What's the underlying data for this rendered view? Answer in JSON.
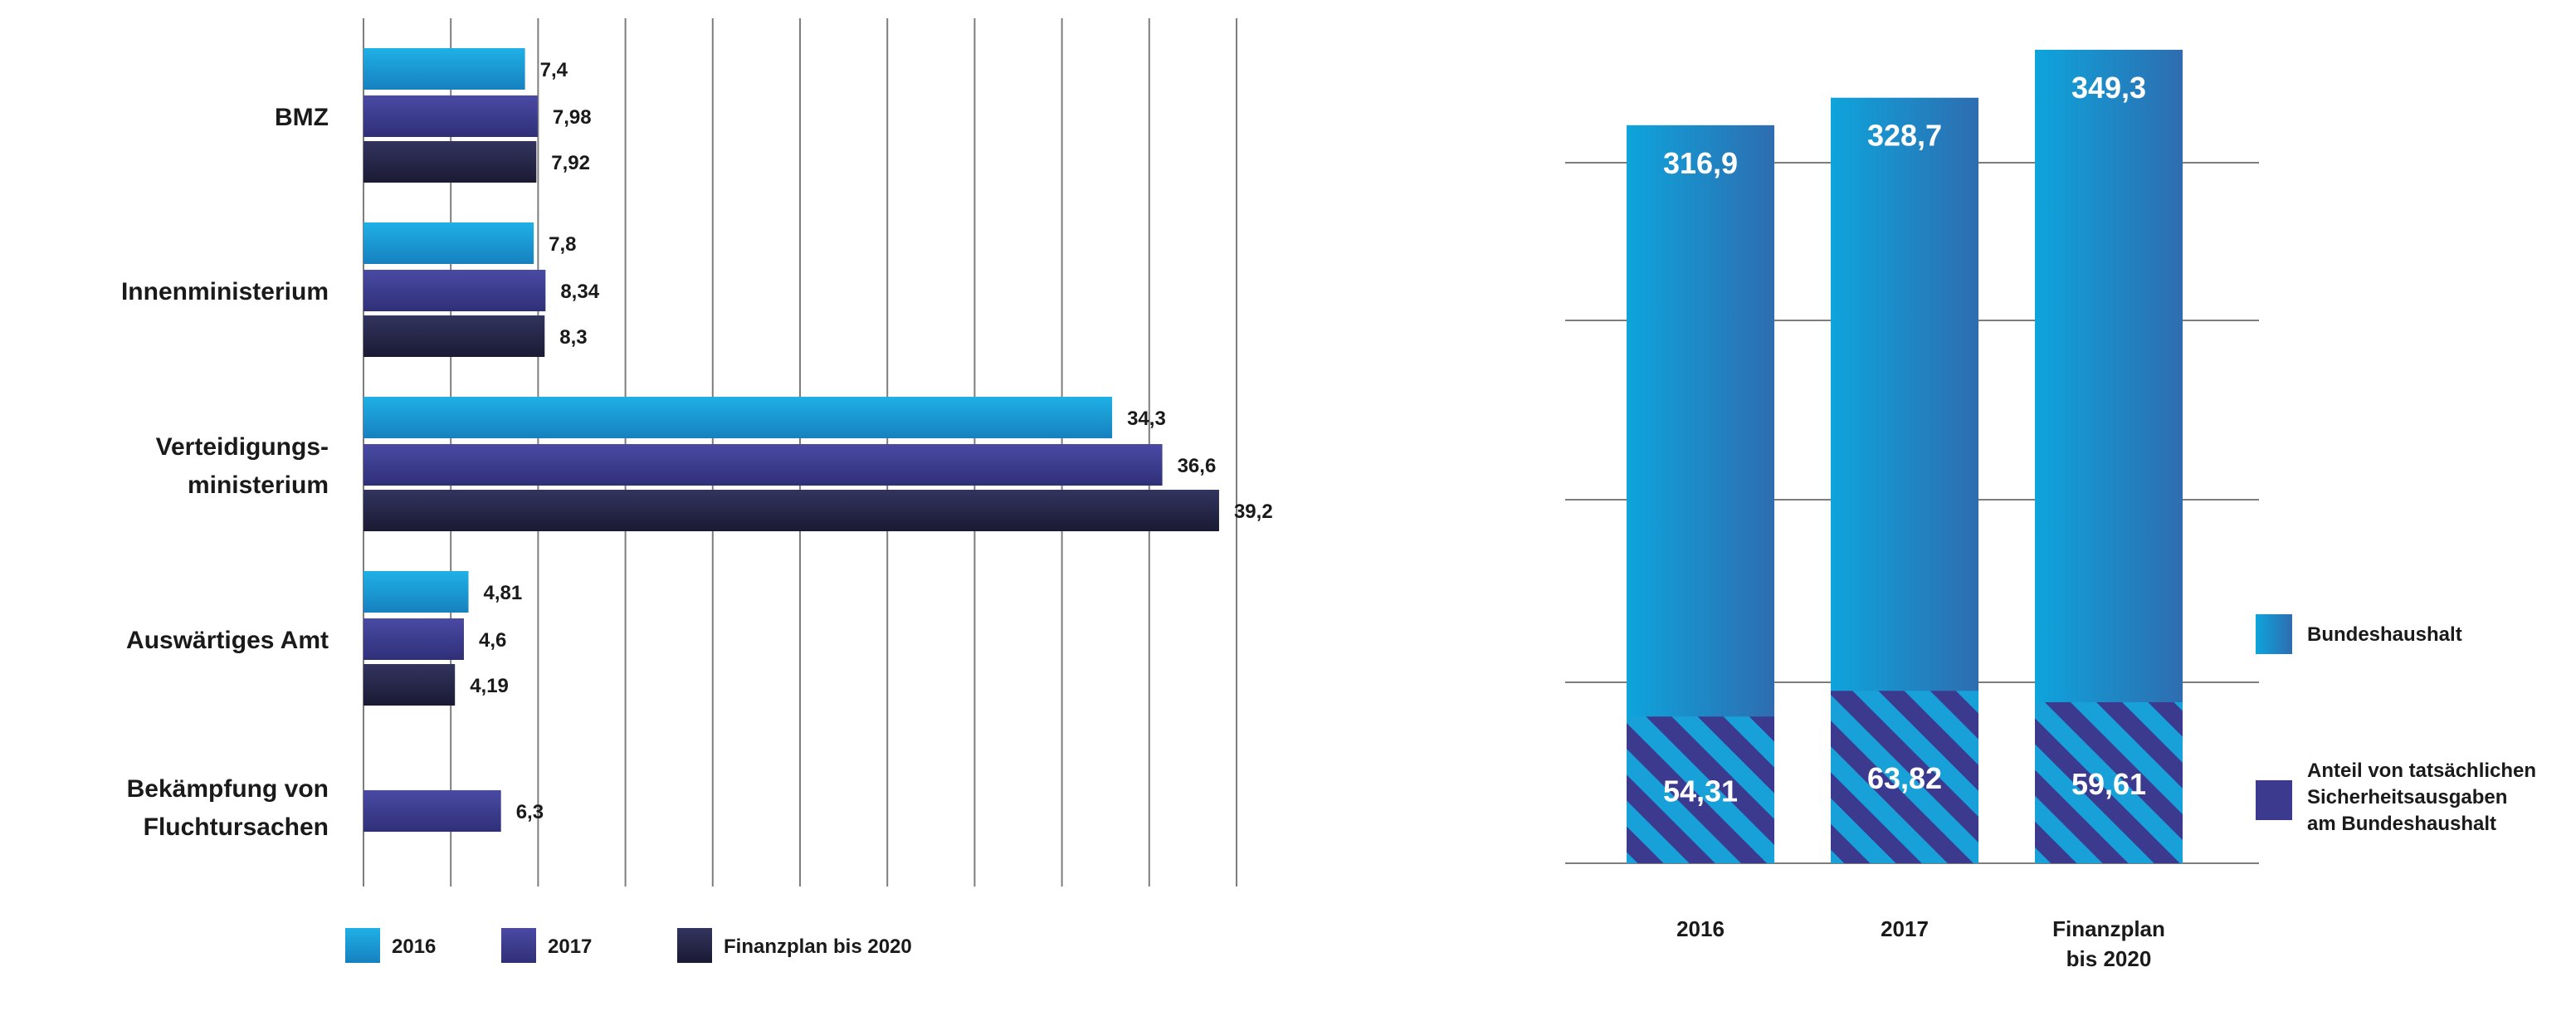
{
  "colors": {
    "c2016": "#1ea0d8",
    "c2017": "#3b3a8f",
    "c2020": "#252647",
    "bundeshaushalt": "#1ea0d8",
    "anteil": "#3b3a8f"
  },
  "chart_data": [
    {
      "type": "bar",
      "orientation": "horizontal",
      "categories": [
        "BMZ",
        "Innenministerium",
        "Verteidigungs-\nministerium",
        "Auswärtiges Amt",
        "Bekämpfung von\nFluchtursachen"
      ],
      "series": [
        {
          "name": "2016",
          "values": [
            7.4,
            7.8,
            34.3,
            4.81,
            null
          ],
          "labels": [
            "7,4",
            "7,8",
            "34,3",
            "4,81",
            null
          ]
        },
        {
          "name": "2017",
          "values": [
            7.98,
            8.34,
            36.6,
            4.6,
            6.3
          ],
          "labels": [
            "7,98",
            "8,34",
            "36,6",
            "4,6",
            "6,3"
          ]
        },
        {
          "name": "Finanzplan bis 2020",
          "values": [
            7.92,
            8.3,
            39.2,
            4.19,
            null
          ],
          "labels": [
            "7,92",
            "8,3",
            "39,2",
            "4,19",
            null
          ]
        }
      ],
      "xlim": [
        0,
        40
      ],
      "grid_count": 10,
      "legend": "bottom"
    },
    {
      "type": "bar",
      "orientation": "vertical",
      "categories": [
        "2016",
        "2017",
        "Finanzplan\nbis 2020"
      ],
      "series": [
        {
          "name": "Bundeshaushalt",
          "values": [
            316.9,
            328.7,
            349.3
          ],
          "labels": [
            "316,9",
            "328,7",
            "349,3"
          ]
        },
        {
          "name": "Anteil von tatsächlichen\nSicherheitsausgaben\nam Bundeshaushalt",
          "values": [
            54.31,
            63.82,
            59.61
          ],
          "labels": [
            "54,31",
            "63,82",
            "59,61"
          ]
        }
      ],
      "ylim": [
        0,
        350
      ],
      "grid_count": 4,
      "legend": "right"
    }
  ]
}
